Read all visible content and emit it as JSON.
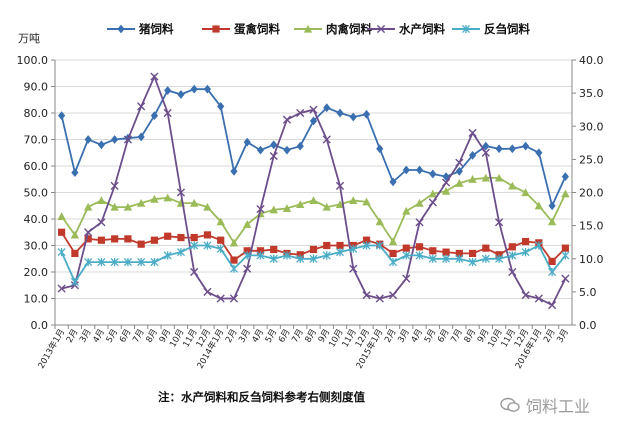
{
  "chart_data": {
    "type": "line",
    "ylabel_left": "万吨",
    "ylim_left": [
      0,
      100
    ],
    "ylim_right": [
      0,
      40
    ],
    "yticks_left": [
      "0.0",
      "10.0",
      "20.0",
      "30.0",
      "40.0",
      "50.0",
      "60.0",
      "70.0",
      "80.0",
      "90.0",
      "100.0"
    ],
    "yticks_right": [
      "0.0",
      "5.0",
      "10.0",
      "15.0",
      "20.0",
      "25.0",
      "30.0",
      "35.0",
      "40.0"
    ],
    "x": [
      "2013年1月",
      "2月",
      "3月",
      "4月",
      "5月",
      "6月",
      "7月",
      "8月",
      "9月",
      "10月",
      "11月",
      "12月",
      "2014年1月",
      "2月",
      "3月",
      "4月",
      "5月",
      "6月",
      "7月",
      "8月",
      "9月",
      "10月",
      "11月",
      "12月",
      "2015年1月",
      "2月",
      "3月",
      "4月",
      "5月",
      "6月",
      "7月",
      "8月",
      "9月",
      "10月",
      "11月",
      "12月",
      "2016年1月",
      "2月",
      "3月"
    ],
    "legend_position": "top",
    "series": [
      {
        "name": "猪饲料",
        "axis": "left",
        "color": "#3a6fb0",
        "marker": "diamond",
        "values": [
          79,
          57.5,
          70,
          68,
          70,
          70.5,
          71,
          79,
          88.5,
          87,
          89,
          89,
          82.5,
          58,
          69,
          66,
          68,
          66,
          67.5,
          77,
          82,
          80,
          78.5,
          79.5,
          66.5,
          54,
          58.5,
          58.5,
          57,
          56,
          58,
          64,
          67.5,
          66.5,
          66.5,
          67.5,
          65,
          45,
          56
        ]
      },
      {
        "name": "蛋禽饲料",
        "axis": "left",
        "color": "#c0392b",
        "marker": "square",
        "values": [
          35,
          27,
          32.5,
          32,
          32.5,
          32.5,
          30.5,
          32,
          33.5,
          33,
          33,
          34,
          32,
          24.5,
          28,
          28,
          28.5,
          27,
          26.5,
          28.5,
          30,
          30,
          30,
          32,
          30.5,
          27,
          29,
          29.5,
          28,
          27.5,
          27,
          27,
          29,
          26.5,
          29.5,
          31.5,
          31,
          24,
          29
        ]
      },
      {
        "name": "肉禽饲料",
        "axis": "left",
        "color": "#9bbb59",
        "marker": "triangle",
        "values": [
          41,
          34,
          44.5,
          47,
          44.5,
          44.5,
          46,
          47.5,
          48,
          46,
          46,
          44.5,
          39,
          31,
          38,
          42,
          43.5,
          44,
          45.5,
          47,
          44.5,
          45.5,
          47,
          46.5,
          39,
          31.5,
          43,
          46,
          49.5,
          50.5,
          53.5,
          55,
          55.5,
          55.5,
          52.5,
          50,
          45,
          39,
          49.5
        ]
      },
      {
        "name": "水产饲料",
        "axis": "right",
        "color": "#6b4e8a",
        "marker": "x",
        "values": [
          5.5,
          6,
          14,
          15.5,
          21,
          28,
          33,
          37.5,
          32,
          20,
          8,
          5,
          4,
          4,
          8.5,
          17.5,
          25.5,
          31,
          32,
          32.5,
          28,
          21,
          8.5,
          4.5,
          4,
          4.5,
          7,
          15.5,
          18.5,
          21.5,
          24.5,
          29,
          26,
          15.5,
          8,
          4.5,
          4,
          3,
          7
        ]
      },
      {
        "name": "反刍饲料",
        "axis": "right",
        "color": "#4bacc6",
        "marker": "star",
        "values": [
          11,
          6.5,
          9.5,
          9.5,
          9.5,
          9.5,
          9.5,
          9.5,
          10.5,
          11,
          12,
          12,
          11.5,
          8.5,
          10.5,
          10.5,
          10,
          10.5,
          10,
          10,
          10.5,
          11,
          11.5,
          12,
          12,
          9.5,
          10.5,
          10.5,
          10,
          10,
          10,
          9.5,
          10,
          10,
          10.5,
          11,
          12,
          8,
          10.5
        ]
      }
    ]
  },
  "note": "注：水产饲料和反刍饲料参考右侧刻度值",
  "watermark": "饲料工业"
}
